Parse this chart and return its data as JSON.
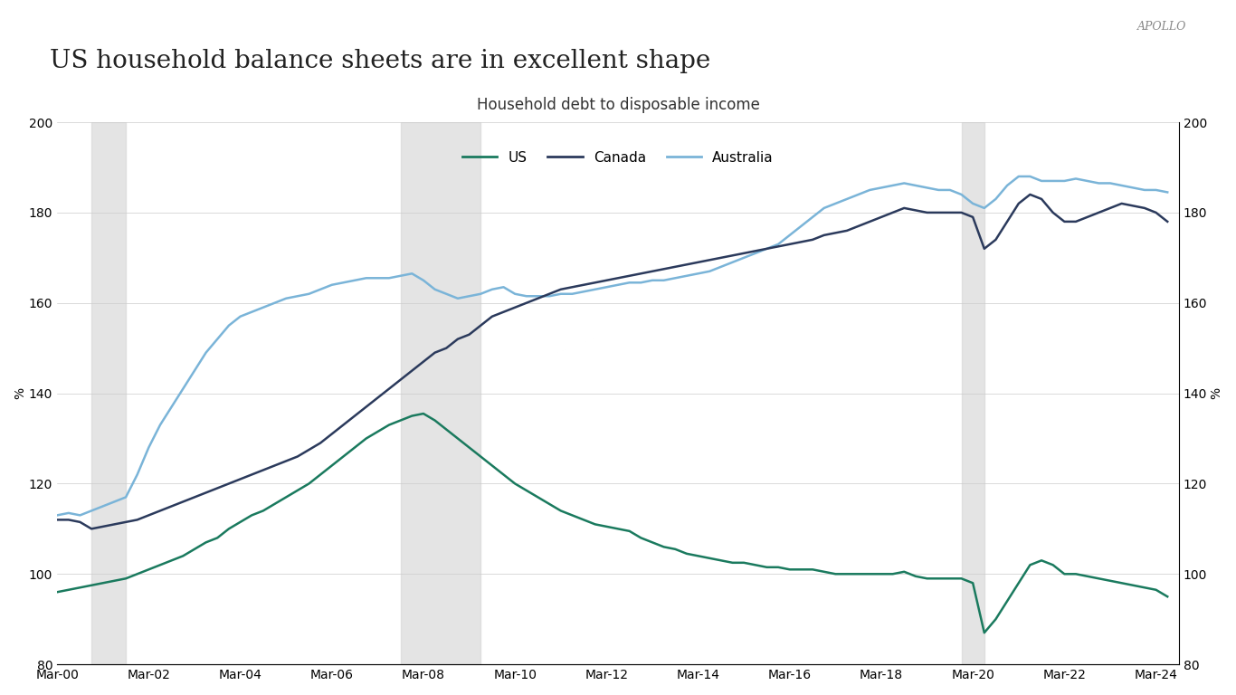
{
  "title": "US household balance sheets are in excellent shape",
  "subtitle": "Household debt to disposable income",
  "watermark": "APOLLO",
  "ylabel": "%",
  "ylim": [
    80,
    200
  ],
  "yticks": [
    80,
    100,
    120,
    140,
    160,
    180,
    200
  ],
  "shaded_regions": [
    {
      "x_start": 2001.0,
      "x_end": 2001.75
    },
    {
      "x_start": 2007.75,
      "x_end": 2009.5
    },
    {
      "x_start": 2020.0,
      "x_end": 2020.5
    }
  ],
  "background_color": "#ffffff",
  "shade_color": "#d3d3d3",
  "line_colors": {
    "US": "#1a7a5e",
    "Canada": "#2b3a5c",
    "Australia": "#7ab4d8"
  },
  "legend_labels": [
    "US",
    "Canada",
    "Australia"
  ],
  "x_start_year": 2000.25,
  "x_end_year": 2024.75,
  "xtick_labels": [
    "Mar-00",
    "Mar-02",
    "Mar-04",
    "Mar-06",
    "Mar-08",
    "Mar-10",
    "Mar-12",
    "Mar-14",
    "Mar-16",
    "Mar-18",
    "Mar-20",
    "Mar-22",
    "Mar-24"
  ],
  "xtick_positions": [
    2000.25,
    2002.25,
    2004.25,
    2006.25,
    2008.25,
    2010.25,
    2012.25,
    2014.25,
    2016.25,
    2018.25,
    2020.25,
    2022.25,
    2024.25
  ],
  "us_data": {
    "years": [
      2000.25,
      2000.5,
      2000.75,
      2001.0,
      2001.25,
      2001.5,
      2001.75,
      2002.0,
      2002.25,
      2002.5,
      2002.75,
      2003.0,
      2003.25,
      2003.5,
      2003.75,
      2004.0,
      2004.25,
      2004.5,
      2004.75,
      2005.0,
      2005.25,
      2005.5,
      2005.75,
      2006.0,
      2006.25,
      2006.5,
      2006.75,
      2007.0,
      2007.25,
      2007.5,
      2007.75,
      2008.0,
      2008.25,
      2008.5,
      2008.75,
      2009.0,
      2009.25,
      2009.5,
      2009.75,
      2010.0,
      2010.25,
      2010.5,
      2010.75,
      2011.0,
      2011.25,
      2011.5,
      2011.75,
      2012.0,
      2012.25,
      2012.5,
      2012.75,
      2013.0,
      2013.25,
      2013.5,
      2013.75,
      2014.0,
      2014.25,
      2014.5,
      2014.75,
      2015.0,
      2015.25,
      2015.5,
      2015.75,
      2016.0,
      2016.25,
      2016.5,
      2016.75,
      2017.0,
      2017.25,
      2017.5,
      2017.75,
      2018.0,
      2018.25,
      2018.5,
      2018.75,
      2019.0,
      2019.25,
      2019.5,
      2019.75,
      2020.0,
      2020.25,
      2020.5,
      2020.75,
      2021.0,
      2021.25,
      2021.5,
      2021.75,
      2022.0,
      2022.25,
      2022.5,
      2022.75,
      2023.0,
      2023.25,
      2023.5,
      2023.75,
      2024.0,
      2024.25,
      2024.5
    ],
    "values": [
      96,
      96.5,
      97,
      97.5,
      98,
      98.5,
      99,
      100,
      101,
      102,
      103,
      104,
      105.5,
      107,
      108,
      110,
      111.5,
      113,
      114,
      115.5,
      117,
      118.5,
      120,
      122,
      124,
      126,
      128,
      130,
      131.5,
      133,
      134,
      135,
      135.5,
      134,
      132,
      130,
      128,
      126,
      124,
      122,
      120,
      118.5,
      117,
      115.5,
      114,
      113,
      112,
      111,
      110.5,
      110,
      109.5,
      108,
      107,
      106,
      105.5,
      104.5,
      104,
      103.5,
      103,
      102.5,
      102.5,
      102,
      101.5,
      101.5,
      101,
      101,
      101,
      100.5,
      100,
      100,
      100,
      100,
      100,
      100,
      100.5,
      99.5,
      99,
      99,
      99,
      99,
      98,
      87,
      90,
      94,
      98,
      102,
      103,
      102,
      100,
      100,
      99.5,
      99,
      98.5,
      98,
      97.5,
      97,
      96.5,
      95
    ]
  },
  "canada_data": {
    "years": [
      2000.25,
      2000.5,
      2000.75,
      2001.0,
      2001.25,
      2001.5,
      2001.75,
      2002.0,
      2002.25,
      2002.5,
      2002.75,
      2003.0,
      2003.25,
      2003.5,
      2003.75,
      2004.0,
      2004.25,
      2004.5,
      2004.75,
      2005.0,
      2005.25,
      2005.5,
      2005.75,
      2006.0,
      2006.25,
      2006.5,
      2006.75,
      2007.0,
      2007.25,
      2007.5,
      2007.75,
      2008.0,
      2008.25,
      2008.5,
      2008.75,
      2009.0,
      2009.25,
      2009.5,
      2009.75,
      2010.0,
      2010.25,
      2010.5,
      2010.75,
      2011.0,
      2011.25,
      2011.5,
      2011.75,
      2012.0,
      2012.25,
      2012.5,
      2012.75,
      2013.0,
      2013.25,
      2013.5,
      2013.75,
      2014.0,
      2014.25,
      2014.5,
      2014.75,
      2015.0,
      2015.25,
      2015.5,
      2015.75,
      2016.0,
      2016.25,
      2016.5,
      2016.75,
      2017.0,
      2017.25,
      2017.5,
      2017.75,
      2018.0,
      2018.25,
      2018.5,
      2018.75,
      2019.0,
      2019.25,
      2019.5,
      2019.75,
      2020.0,
      2020.25,
      2020.5,
      2020.75,
      2021.0,
      2021.25,
      2021.5,
      2021.75,
      2022.0,
      2022.25,
      2022.5,
      2022.75,
      2023.0,
      2023.25,
      2023.5,
      2023.75,
      2024.0,
      2024.25,
      2024.5
    ],
    "values": [
      112,
      112,
      111.5,
      110,
      110.5,
      111,
      111.5,
      112,
      113,
      114,
      115,
      116,
      117,
      118,
      119,
      120,
      121,
      122,
      123,
      124,
      125,
      126,
      127.5,
      129,
      131,
      133,
      135,
      137,
      139,
      141,
      143,
      145,
      147,
      149,
      150,
      152,
      153,
      155,
      157,
      158,
      159,
      160,
      161,
      162,
      163,
      163.5,
      164,
      164.5,
      165,
      165.5,
      166,
      166.5,
      167,
      167.5,
      168,
      168.5,
      169,
      169.5,
      170,
      170.5,
      171,
      171.5,
      172,
      172.5,
      173,
      173.5,
      174,
      175,
      175.5,
      176,
      177,
      178,
      179,
      180,
      181,
      180.5,
      180,
      180,
      180,
      180,
      179,
      172,
      174,
      178,
      182,
      184,
      183,
      180,
      178,
      178,
      179,
      180,
      181,
      182,
      181.5,
      181,
      180,
      178
    ]
  },
  "australia_data": {
    "years": [
      2000.25,
      2000.5,
      2000.75,
      2001.0,
      2001.25,
      2001.5,
      2001.75,
      2002.0,
      2002.25,
      2002.5,
      2002.75,
      2003.0,
      2003.25,
      2003.5,
      2003.75,
      2004.0,
      2004.25,
      2004.5,
      2004.75,
      2005.0,
      2005.25,
      2005.5,
      2005.75,
      2006.0,
      2006.25,
      2006.5,
      2006.75,
      2007.0,
      2007.25,
      2007.5,
      2007.75,
      2008.0,
      2008.25,
      2008.5,
      2008.75,
      2009.0,
      2009.25,
      2009.5,
      2009.75,
      2010.0,
      2010.25,
      2010.5,
      2010.75,
      2011.0,
      2011.25,
      2011.5,
      2011.75,
      2012.0,
      2012.25,
      2012.5,
      2012.75,
      2013.0,
      2013.25,
      2013.5,
      2013.75,
      2014.0,
      2014.25,
      2014.5,
      2014.75,
      2015.0,
      2015.25,
      2015.5,
      2015.75,
      2016.0,
      2016.25,
      2016.5,
      2016.75,
      2017.0,
      2017.25,
      2017.5,
      2017.75,
      2018.0,
      2018.25,
      2018.5,
      2018.75,
      2019.0,
      2019.25,
      2019.5,
      2019.75,
      2020.0,
      2020.25,
      2020.5,
      2020.75,
      2021.0,
      2021.25,
      2021.5,
      2021.75,
      2022.0,
      2022.25,
      2022.5,
      2022.75,
      2023.0,
      2023.25,
      2023.5,
      2023.75,
      2024.0,
      2024.25,
      2024.5
    ],
    "values": [
      113,
      113.5,
      113,
      114,
      115,
      116,
      117,
      122,
      128,
      133,
      137,
      141,
      145,
      149,
      152,
      155,
      157,
      158,
      159,
      160,
      161,
      161.5,
      162,
      163,
      164,
      164.5,
      165,
      165.5,
      165.5,
      165.5,
      166,
      166.5,
      165,
      163,
      162,
      161,
      161.5,
      162,
      163,
      163.5,
      162,
      161.5,
      161.5,
      161.5,
      162,
      162,
      162.5,
      163,
      163.5,
      164,
      164.5,
      164.5,
      165,
      165,
      165.5,
      166,
      166.5,
      167,
      168,
      169,
      170,
      171,
      172,
      173,
      175,
      177,
      179,
      181,
      182,
      183,
      184,
      185,
      185.5,
      186,
      186.5,
      186,
      185.5,
      185,
      185,
      184,
      182,
      181,
      183,
      186,
      188,
      188,
      187,
      187,
      187,
      187.5,
      187,
      186.5,
      186.5,
      186,
      185.5,
      185,
      185,
      184.5
    ]
  }
}
